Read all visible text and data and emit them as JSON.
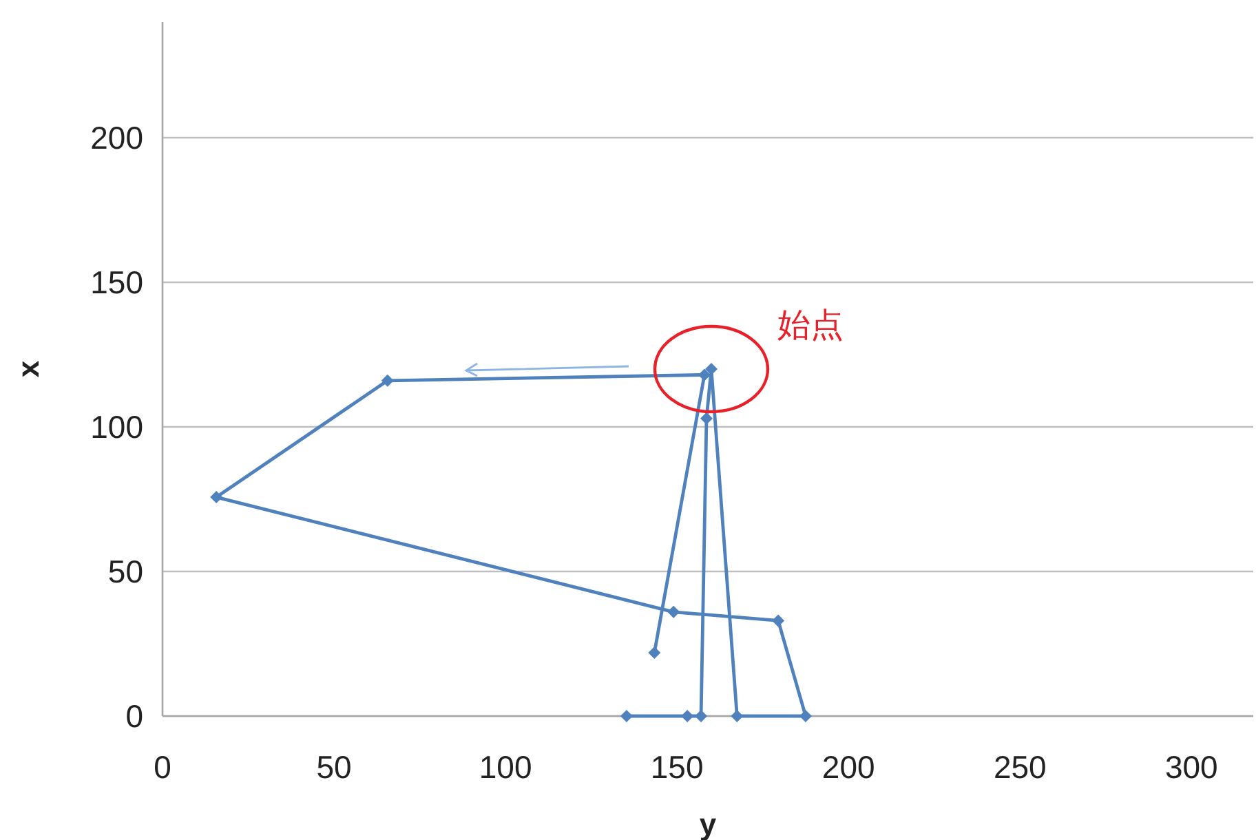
{
  "chart_data": {
    "type": "line",
    "xlabel": "y",
    "ylabel": "x",
    "x": [
      135.3,
      153,
      157,
      158.6,
      160,
      167.5,
      187.5,
      179.5,
      149,
      15.7,
      65.6,
      158,
      143.4
    ],
    "series": [
      {
        "color": "#4f81bd",
        "values": [
          0,
          0,
          0,
          102.9,
          120,
          0,
          0,
          33,
          36,
          75.7,
          116,
          118,
          21.9
        ]
      }
    ],
    "xlim": [
      0,
      318
    ],
    "ylim": [
      0,
      240
    ],
    "xticks": [
      0,
      50,
      100,
      150,
      200,
      250,
      300
    ],
    "yticks": [
      0,
      50,
      100,
      150,
      200
    ],
    "grid": "y",
    "marker": "diamond",
    "line_style": "solid",
    "annotations": [
      {
        "text": "始点",
        "x": 160,
        "y": 120
      }
    ]
  }
}
